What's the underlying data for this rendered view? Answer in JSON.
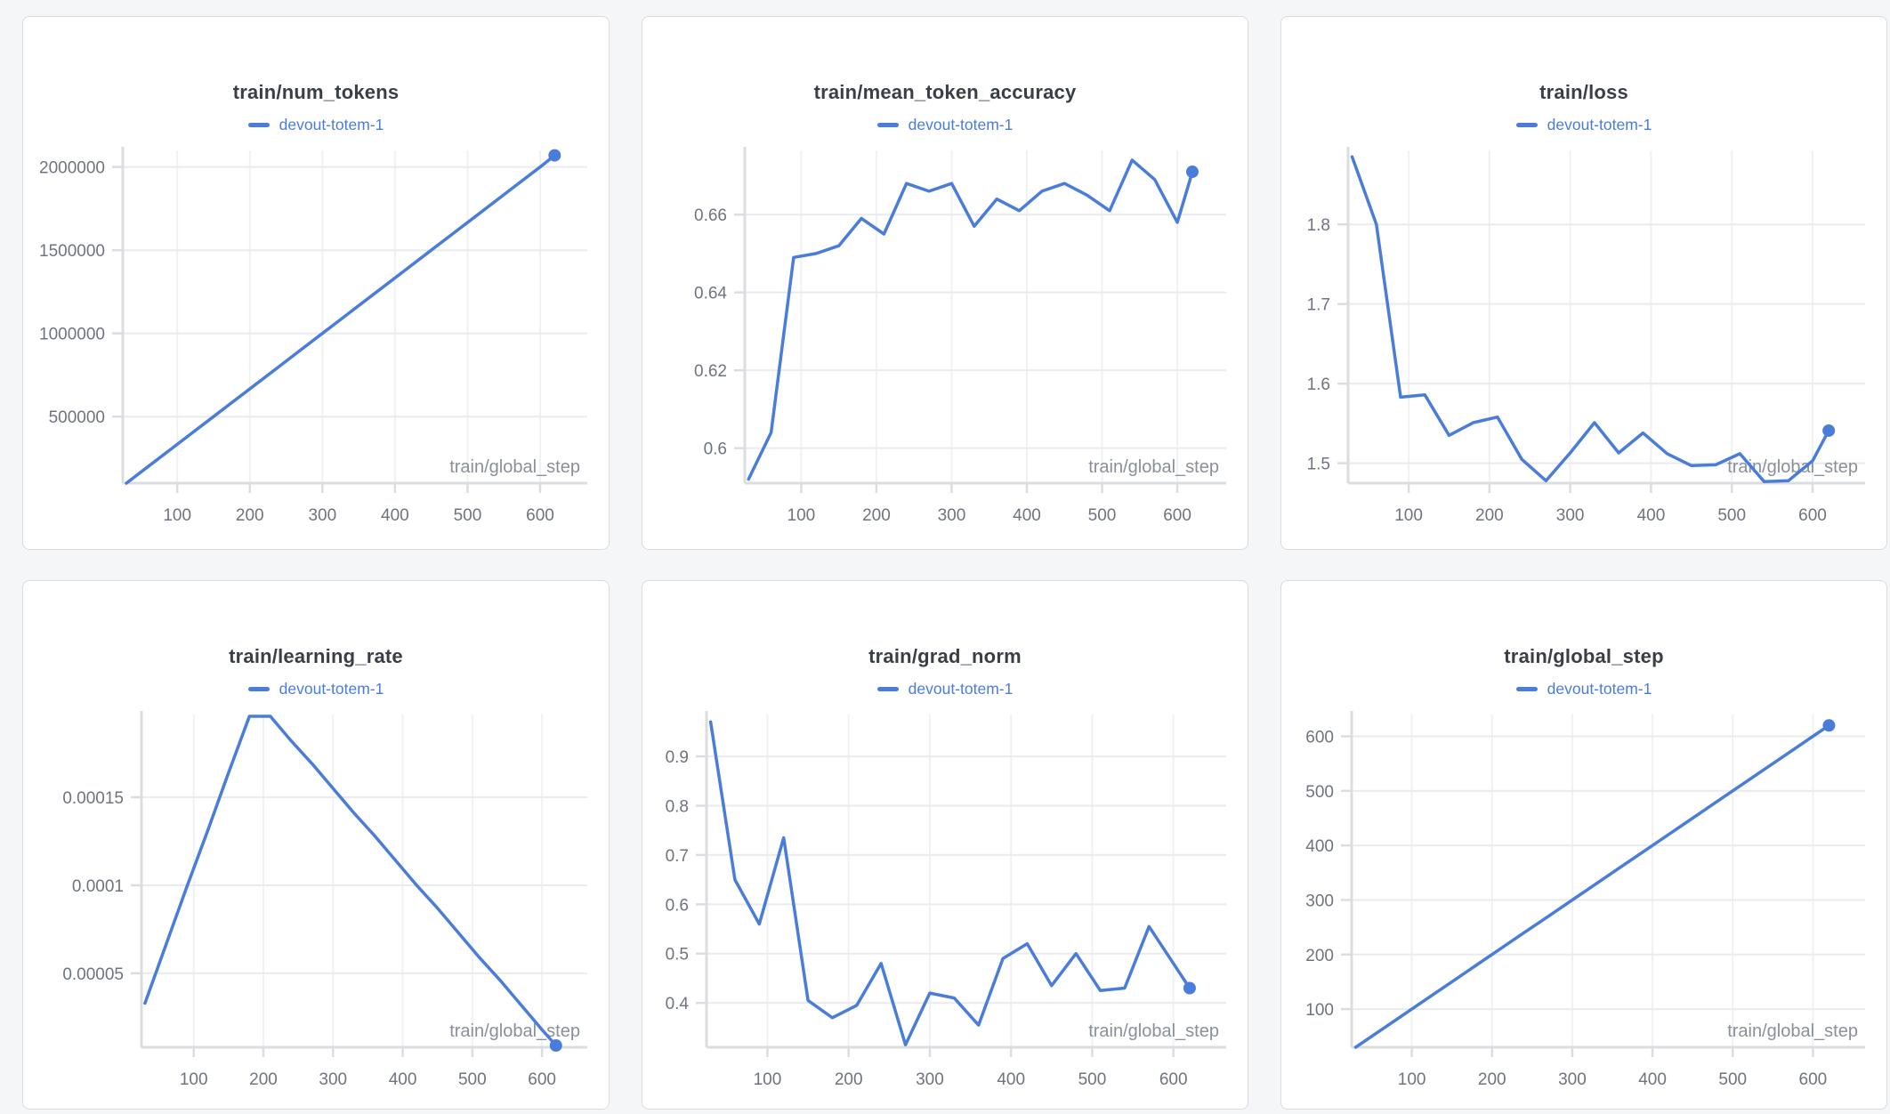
{
  "page": {
    "background": "#F5F6F7",
    "card_background": "#FFFFFF",
    "card_border": "#D9DBDF"
  },
  "colors": {
    "accent": "#4A7DD9",
    "title": "#3A3F47",
    "tick_label": "#6E747E",
    "axis_label": "#8A9099",
    "gridline_h": "#E9EBED",
    "gridline_v": "#F0F1F3",
    "axis_line": "#DBDDE1"
  },
  "chart_data": [
    {
      "type": "line",
      "title": "train/num_tokens",
      "series": "devout-totem-1",
      "x_label": "train/global_step",
      "legend_position": "top",
      "grid": true,
      "x": [
        30,
        60,
        90,
        120,
        150,
        180,
        210,
        240,
        270,
        300,
        330,
        360,
        390,
        420,
        450,
        480,
        510,
        540,
        570,
        600,
        620
      ],
      "values": [
        100000,
        200000,
        300000,
        400000,
        500000,
        600000,
        700000,
        800000,
        900000,
        1000000,
        1100000,
        1200000,
        1300000,
        1400000,
        1500000,
        1600000,
        1700000,
        1800000,
        1900000,
        2000000,
        2070000
      ],
      "xlim": [
        25,
        665
      ],
      "ylim": [
        100000,
        2100000
      ],
      "x_ticks": [
        100,
        200,
        300,
        400,
        500,
        600
      ],
      "y_ticks": [
        500000,
        1000000,
        1500000,
        2000000
      ],
      "y_tick_labels": [
        "500000",
        "1000000",
        "1500000",
        "2000000"
      ],
      "plot_left": 112,
      "end_marker": true
    },
    {
      "type": "line",
      "title": "train/mean_token_accuracy",
      "series": "devout-totem-1",
      "x_label": "train/global_step",
      "legend_position": "top",
      "grid": true,
      "x": [
        30,
        60,
        90,
        120,
        150,
        180,
        210,
        240,
        270,
        300,
        330,
        360,
        390,
        420,
        450,
        480,
        510,
        540,
        570,
        600,
        620
      ],
      "values": [
        0.592,
        0.604,
        0.649,
        0.65,
        0.652,
        0.659,
        0.655,
        0.668,
        0.666,
        0.668,
        0.657,
        0.664,
        0.661,
        0.666,
        0.668,
        0.665,
        0.661,
        0.674,
        0.669,
        0.658,
        0.671
      ],
      "xlim": [
        25,
        665
      ],
      "ylim": [
        0.591,
        0.6765
      ],
      "x_ticks": [
        100,
        200,
        300,
        400,
        500,
        600
      ],
      "y_ticks": [
        0.6,
        0.62,
        0.64,
        0.66
      ],
      "y_tick_labels": [
        "0.6",
        "0.62",
        "0.64",
        "0.66"
      ],
      "plot_left": 115,
      "end_marker": true
    },
    {
      "type": "line",
      "title": "train/loss",
      "series": "devout-totem-1",
      "x_label": "train/global_step",
      "legend_position": "top",
      "grid": true,
      "x": [
        30,
        60,
        90,
        120,
        150,
        180,
        210,
        240,
        270,
        300,
        330,
        360,
        390,
        420,
        450,
        480,
        510,
        540,
        570,
        600,
        620
      ],
      "values": [
        1.885,
        1.8,
        1.583,
        1.586,
        1.535,
        1.551,
        1.558,
        1.505,
        1.478,
        1.513,
        1.551,
        1.513,
        1.538,
        1.512,
        1.497,
        1.498,
        1.512,
        1.477,
        1.478,
        1.503,
        1.541
      ],
      "xlim": [
        25,
        665
      ],
      "ylim": [
        1.475,
        1.893
      ],
      "x_ticks": [
        100,
        200,
        300,
        400,
        500,
        600
      ],
      "y_ticks": [
        1.5,
        1.6,
        1.7,
        1.8
      ],
      "y_tick_labels": [
        "1.5",
        "1.6",
        "1.7",
        "1.8"
      ],
      "plot_left": 75,
      "end_marker": true
    },
    {
      "type": "line",
      "title": "train/learning_rate",
      "series": "devout-totem-1",
      "x_label": "train/global_step",
      "legend_position": "top",
      "grid": true,
      "x": [
        30,
        60,
        90,
        120,
        150,
        180,
        210,
        240,
        270,
        300,
        330,
        360,
        390,
        420,
        450,
        480,
        510,
        540,
        570,
        600,
        620
      ],
      "values": [
        3.3e-05,
        6.6e-05,
        9.9e-05,
        0.000131,
        0.000164,
        0.000196,
        0.000196,
        0.000182,
        0.000169,
        0.000155,
        0.000141,
        0.000128,
        0.000114,
        0.0001,
        8.7e-05,
        7.3e-05,
        5.9e-05,
        4.6e-05,
        3.2e-05,
        1.8e-05,
        9e-06
      ],
      "xlim": [
        25,
        665
      ],
      "ylim": [
        8e-06,
        0.000197
      ],
      "x_ticks": [
        100,
        200,
        300,
        400,
        500,
        600
      ],
      "y_ticks": [
        5e-05,
        0.0001,
        0.00015
      ],
      "y_tick_labels": [
        "0.00005",
        "0.0001",
        "0.00015"
      ],
      "plot_left": 133,
      "end_marker": true
    },
    {
      "type": "line",
      "title": "train/grad_norm",
      "series": "devout-totem-1",
      "x_label": "train/global_step",
      "legend_position": "top",
      "grid": true,
      "x": [
        30,
        60,
        90,
        120,
        150,
        180,
        210,
        240,
        270,
        300,
        330,
        360,
        390,
        420,
        450,
        480,
        510,
        540,
        570,
        600,
        620
      ],
      "values": [
        0.97,
        0.65,
        0.56,
        0.735,
        0.405,
        0.37,
        0.395,
        0.48,
        0.315,
        0.42,
        0.41,
        0.355,
        0.49,
        0.52,
        0.435,
        0.5,
        0.425,
        0.43,
        0.555,
        0.48,
        0.43
      ],
      "xlim": [
        25,
        665
      ],
      "ylim": [
        0.31,
        0.985
      ],
      "x_ticks": [
        100,
        200,
        300,
        400,
        500,
        600
      ],
      "y_ticks": [
        0.4,
        0.5,
        0.6,
        0.7,
        0.8,
        0.9
      ],
      "y_tick_labels": [
        "0.4",
        "0.5",
        "0.6",
        "0.7",
        "0.8",
        "0.9"
      ],
      "plot_left": 72,
      "end_marker": true
    },
    {
      "type": "line",
      "title": "train/global_step",
      "series": "devout-totem-1",
      "x_label": "train/global_step",
      "legend_position": "top",
      "grid": true,
      "x": [
        30,
        60,
        90,
        120,
        150,
        180,
        210,
        240,
        270,
        300,
        330,
        360,
        390,
        420,
        450,
        480,
        510,
        540,
        570,
        600,
        620
      ],
      "values": [
        30,
        60,
        90,
        120,
        150,
        180,
        210,
        240,
        270,
        300,
        330,
        360,
        390,
        420,
        450,
        480,
        510,
        540,
        570,
        600,
        620
      ],
      "xlim": [
        25,
        665
      ],
      "ylim": [
        30,
        640
      ],
      "x_ticks": [
        100,
        200,
        300,
        400,
        500,
        600
      ],
      "y_ticks": [
        100,
        200,
        300,
        400,
        500,
        600
      ],
      "y_tick_labels": [
        "100",
        "200",
        "300",
        "400",
        "500",
        "600"
      ],
      "plot_left": 79,
      "end_marker": true
    }
  ]
}
